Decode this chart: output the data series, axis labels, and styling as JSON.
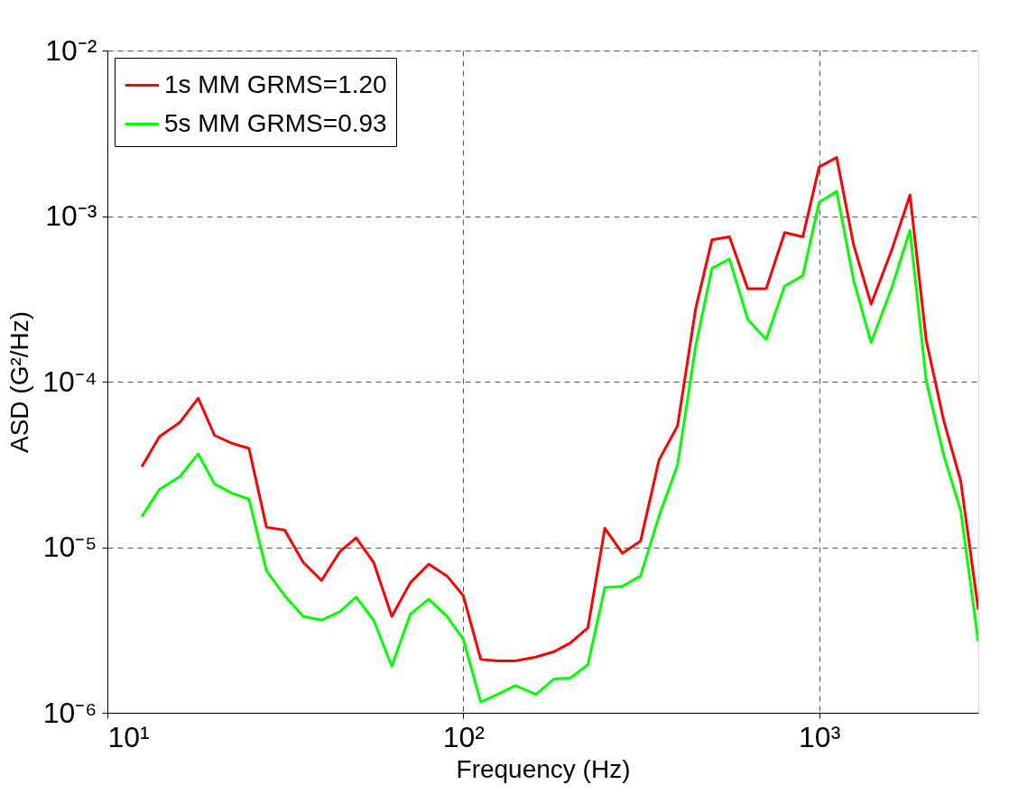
{
  "chart_data": {
    "type": "line",
    "xlabel": "Frequency (Hz)",
    "ylabel": "ASD (G²/Hz)",
    "log": "xy",
    "grid": true,
    "legend": "top left",
    "line_style": "solid",
    "marker": "none",
    "x": [
      12.5,
      14,
      16,
      18,
      20,
      22.4,
      25,
      28,
      31.5,
      35.5,
      40,
      45,
      50,
      56,
      63,
      71,
      80,
      90,
      100,
      112,
      125,
      140,
      160,
      180,
      200,
      224,
      250,
      280,
      315,
      355,
      400,
      450,
      500,
      560,
      630,
      710,
      800,
      900,
      1000,
      1120,
      1250,
      1400,
      1600,
      1800,
      2000,
      2240,
      2500,
      2800
    ],
    "xlim": [
      10,
      2800
    ],
    "xticks": [
      {
        "value": 10,
        "label": "10¹"
      },
      {
        "value": 100,
        "label": "10²"
      },
      {
        "value": 1000,
        "label": "10³"
      }
    ],
    "ylim": [
      1e-06,
      0.01
    ],
    "yticks": [
      {
        "value": 1e-06,
        "label": "10⁻⁶"
      },
      {
        "value": 1e-05,
        "label": "10⁻⁵"
      },
      {
        "value": 0.0001,
        "label": "10⁻⁴"
      },
      {
        "value": 0.001,
        "label": "10⁻³"
      },
      {
        "value": 0.01,
        "label": "10⁻²"
      }
    ],
    "series": [
      {
        "name": "1s MM GRMS=1.20",
        "color": "#ff0000",
        "values": [
          3.06e-05,
          4.65e-05,
          5.69e-05,
          7.94e-05,
          4.74e-05,
          4.24e-05,
          3.95e-05,
          1.32e-05,
          1.27e-05,
          8.1e-06,
          6.3e-06,
          9.4e-06,
          1.14e-05,
          8.1e-06,
          3.82e-06,
          6.1e-06,
          7.9e-06,
          6.7e-06,
          5.1e-06,
          2.1e-06,
          2.06e-06,
          2.06e-06,
          2.17e-06,
          2.34e-06,
          2.64e-06,
          3.26e-06,
          1.3e-05,
          9.2e-06,
          1.09e-05,
          3.37e-05,
          5.4e-05,
          0.000277,
          0.00072,
          0.00075,
          0.000364,
          0.000364,
          0.000796,
          0.00075,
          0.00198,
          0.00226,
          0.00067,
          0.000293,
          0.000625,
          0.00134,
          0.000177,
          5.8e-05,
          2.5e-05,
          4.2e-06
        ]
      },
      {
        "name": "5s MM GRMS=0.93",
        "color": "#00ff00",
        "values": [
          1.53e-05,
          2.23e-05,
          2.67e-05,
          3.66e-05,
          2.41e-05,
          2.12e-05,
          1.95e-05,
          7.2e-06,
          5.1e-06,
          3.82e-06,
          3.63e-06,
          4.07e-06,
          5e-06,
          3.63e-06,
          1.91e-06,
          3.94e-06,
          4.85e-06,
          3.82e-06,
          2.79e-06,
          1.16e-06,
          1.29e-06,
          1.46e-06,
          1.29e-06,
          1.6e-06,
          1.62e-06,
          1.95e-06,
          5.7e-06,
          5.8e-06,
          6.7e-06,
          1.54e-05,
          3.13e-05,
          0.000164,
          0.000484,
          0.00055,
          0.000238,
          0.00018,
          0.000378,
          0.000436,
          0.00121,
          0.00141,
          0.00041,
          0.000172,
          0.000369,
          0.00082,
          0.000101,
          3.59e-05,
          1.66e-05,
          2.7e-06
        ]
      }
    ]
  }
}
